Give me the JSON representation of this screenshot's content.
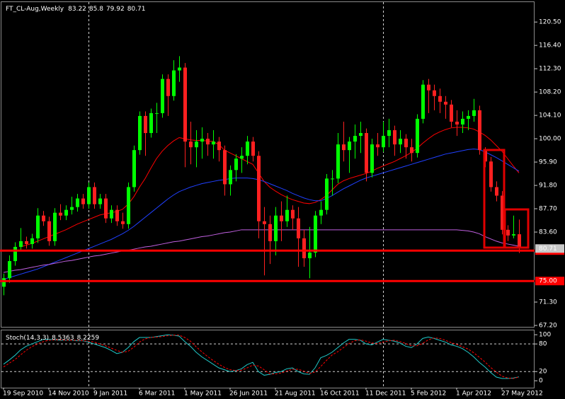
{
  "chart_data": [
    {
      "type": "candlestick",
      "title": "FT_CL-Aug,Weekly",
      "categories": [
        "19 Sep 2010",
        null,
        null,
        null,
        null,
        null,
        null,
        null,
        "14 Nov 2010",
        null,
        null,
        null,
        null,
        null,
        null,
        null,
        "9 Jan 2011",
        null,
        null,
        null,
        null,
        null,
        null,
        null,
        "6 Mar 2011",
        null,
        null,
        null,
        null,
        null,
        null,
        null,
        "1 May 2011",
        null,
        null,
        null,
        null,
        null,
        null,
        null,
        "26 Jun 2011",
        null,
        null,
        null,
        null,
        null,
        null,
        null,
        "21 Aug 2011",
        null,
        null,
        null,
        null,
        null,
        null,
        null,
        "16 Oct 2011",
        null,
        null,
        null,
        null,
        null,
        null,
        null,
        "11 Dec 2011",
        null,
        null,
        null,
        null,
        null,
        null,
        null,
        "5 Feb 2012",
        null,
        null,
        null,
        null,
        null,
        null,
        null,
        "1 Apr 2012",
        null,
        null,
        null,
        null,
        null,
        null,
        null,
        "27 May 2012",
        null,
        null,
        null
      ],
      "ohlc": [
        [
          74.0,
          76.3,
          72.5,
          75.5
        ],
        [
          75.5,
          79.5,
          74.7,
          78.5
        ],
        [
          78.5,
          81.8,
          77.7,
          81.0
        ],
        [
          81.0,
          84.3,
          80.2,
          82.0
        ],
        [
          82.0,
          82.8,
          80.7,
          81.5
        ],
        [
          81.5,
          83.3,
          80.7,
          82.5
        ],
        [
          82.5,
          87.8,
          81.7,
          86.5
        ],
        [
          86.5,
          87.3,
          84.7,
          85.5
        ],
        [
          85.5,
          86.3,
          81.2,
          82.0
        ],
        [
          82.0,
          87.8,
          81.2,
          87.0
        ],
        [
          87.0,
          88.5,
          85.7,
          86.5
        ],
        [
          86.5,
          88.3,
          85.7,
          87.5
        ],
        [
          87.5,
          89.8,
          86.7,
          88.0
        ],
        [
          88.0,
          90.3,
          87.2,
          89.5
        ],
        [
          89.5,
          90.3,
          87.7,
          88.5
        ],
        [
          88.5,
          92.3,
          87.7,
          91.5
        ],
        [
          91.5,
          92.3,
          87.7,
          88.5
        ],
        [
          88.5,
          90.3,
          87.7,
          89.5
        ],
        [
          89.5,
          90.3,
          85.2,
          86.0
        ],
        [
          86.0,
          88.3,
          85.2,
          87.5
        ],
        [
          87.5,
          88.3,
          84.7,
          85.5
        ],
        [
          85.5,
          87.0,
          84.2,
          85.0
        ],
        [
          85.0,
          92.3,
          84.2,
          91.5
        ],
        [
          91.5,
          98.8,
          90.7,
          98.0
        ],
        [
          98.0,
          104.8,
          97.2,
          104.0
        ],
        [
          104.0,
          104.8,
          97.0,
          101.0
        ],
        [
          101.0,
          105.3,
          100.2,
          104.5
        ],
        [
          104.5,
          106.3,
          101.0,
          104.5
        ],
        [
          104.5,
          111.3,
          103.7,
          110.5
        ],
        [
          110.5,
          111.3,
          104.0,
          107.5
        ],
        [
          107.5,
          113.8,
          106.7,
          112.0
        ],
        [
          112.0,
          114.5,
          110.0,
          112.5
        ],
        [
          112.5,
          113.3,
          95.0,
          99.5
        ],
        [
          99.5,
          103.0,
          95.5,
          98.5
        ],
        [
          98.5,
          101.5,
          95.0,
          99.5
        ],
        [
          99.5,
          102.0,
          96.5,
          100.0
        ],
        [
          100.0,
          101.0,
          97.0,
          99.0
        ],
        [
          99.0,
          101.5,
          96.5,
          99.5
        ],
        [
          99.5,
          100.3,
          96.0,
          98.0
        ],
        [
          98.0,
          98.8,
          90.0,
          92.0
        ],
        [
          92.0,
          95.3,
          90.0,
          94.5
        ],
        [
          94.5,
          97.3,
          92.5,
          96.5
        ],
        [
          96.5,
          98.5,
          94.0,
          97.0
        ],
        [
          97.0,
          100.5,
          95.5,
          99.5
        ],
        [
          99.5,
          100.3,
          96.0,
          97.0
        ],
        [
          97.0,
          97.8,
          82.5,
          85.5
        ],
        [
          85.5,
          88.0,
          76.0,
          85.0
        ],
        [
          85.0,
          86.5,
          78.0,
          82.0
        ],
        [
          82.0,
          88.0,
          79.5,
          86.5
        ],
        [
          86.5,
          89.0,
          82.0,
          85.5
        ],
        [
          85.5,
          90.0,
          84.5,
          87.5
        ],
        [
          87.5,
          88.3,
          84.0,
          86.0
        ],
        [
          86.0,
          88.0,
          77.5,
          82.5
        ],
        [
          82.5,
          84.0,
          77.5,
          79.0
        ],
        [
          79.0,
          84.5,
          75.5,
          80.0
        ],
        [
          80.0,
          87.3,
          79.2,
          86.5
        ],
        [
          86.5,
          89.0,
          85.0,
          87.5
        ],
        [
          87.5,
          93.8,
          86.7,
          93.0
        ],
        [
          93.0,
          94.5,
          90.0,
          93.0
        ],
        [
          93.0,
          101.0,
          92.2,
          99.0
        ],
        [
          99.0,
          103.0,
          96.0,
          98.0
        ],
        [
          98.0,
          100.3,
          94.0,
          99.5
        ],
        [
          99.5,
          102.5,
          96.5,
          100.5
        ],
        [
          100.5,
          103.0,
          97.5,
          101.0
        ],
        [
          101.0,
          101.8,
          92.5,
          94.0
        ],
        [
          94.0,
          100.0,
          93.2,
          99.0
        ],
        [
          99.0,
          101.0,
          97.0,
          98.5
        ],
        [
          98.5,
          103.0,
          97.7,
          100.5
        ],
        [
          100.5,
          103.5,
          98.5,
          101.5
        ],
        [
          101.5,
          102.3,
          97.0,
          99.0
        ],
        [
          99.0,
          101.5,
          97.5,
          100.0
        ],
        [
          100.0,
          100.8,
          96.5,
          98.5
        ],
        [
          98.5,
          100.0,
          96.0,
          97.5
        ],
        [
          97.5,
          104.3,
          96.7,
          103.5
        ],
        [
          103.5,
          110.3,
          102.7,
          109.5
        ],
        [
          109.5,
          110.5,
          104.5,
          108.5
        ],
        [
          108.5,
          109.5,
          105.0,
          107.5
        ],
        [
          107.5,
          108.8,
          104.5,
          106.5
        ],
        [
          106.5,
          107.5,
          103.5,
          106.0
        ],
        [
          106.0,
          106.8,
          102.0,
          103.0
        ],
        [
          103.0,
          105.0,
          100.5,
          102.5
        ],
        [
          102.5,
          104.8,
          101.0,
          103.5
        ],
        [
          103.5,
          105.0,
          101.5,
          104.0
        ],
        [
          104.0,
          107.0,
          103.0,
          105.0
        ],
        [
          105.0,
          105.8,
          97.2,
          98.0
        ],
        [
          98.0,
          98.5,
          95.0,
          96.0
        ],
        [
          96.0,
          96.8,
          90.7,
          91.5
        ],
        [
          91.5,
          92.5,
          89.0,
          90.0
        ],
        [
          90.0,
          90.8,
          83.2,
          84.0
        ],
        [
          84.0,
          84.8,
          82.0,
          83.0
        ],
        [
          83.0,
          86.5,
          82.5,
          83.22
        ],
        [
          83.22,
          85.8,
          79.92,
          80.71
        ]
      ],
      "up_color": "#00ff00",
      "down_color": "#ff2020",
      "overlays": [
        {
          "color": "#ff0000",
          "values": [
            null,
            null,
            null,
            81.0,
            81.3,
            81.6,
            82.0,
            82.4,
            82.8,
            83.2,
            83.6,
            84.0,
            84.5,
            85.0,
            85.4,
            85.8,
            86.2,
            86.6,
            86.8,
            87.0,
            87.2,
            87.6,
            88.5,
            89.8,
            91.5,
            93.0,
            94.8,
            96.5,
            97.8,
            98.8,
            99.6,
            100.2,
            100.0,
            99.8,
            99.7,
            99.7,
            99.6,
            99.5,
            99.0,
            98.0,
            97.5,
            97.0,
            96.5,
            96.0,
            95.5,
            94.0,
            92.5,
            91.5,
            90.8,
            90.2,
            89.7,
            89.3,
            89.0,
            88.7,
            88.6,
            88.8,
            89.3,
            90.0,
            91.0,
            92.0,
            92.6,
            93.0,
            93.3,
            93.6,
            93.9,
            94.3,
            94.8,
            95.2,
            95.6,
            96.0,
            96.5,
            97.0,
            97.6,
            98.3,
            99.2,
            100.0,
            100.7,
            101.2,
            101.6,
            101.9,
            102.0,
            102.0,
            101.9,
            101.7,
            101.2,
            100.6,
            99.8,
            98.8,
            97.8,
            96.5,
            95.2,
            94.0
          ]
        },
        {
          "color": "#2040ff",
          "values": [
            75.3,
            75.6,
            75.9,
            76.2,
            76.5,
            76.8,
            77.1,
            77.5,
            77.9,
            78.3,
            78.7,
            79.1,
            79.5,
            79.9,
            80.3,
            80.7,
            81.1,
            81.5,
            81.9,
            82.3,
            82.8,
            83.3,
            83.9,
            84.6,
            85.4,
            86.2,
            87.0,
            87.8,
            88.6,
            89.4,
            90.1,
            90.7,
            91.1,
            91.5,
            91.8,
            92.1,
            92.3,
            92.5,
            92.7,
            92.8,
            93.0,
            93.1,
            93.1,
            93.1,
            93.0,
            92.8,
            92.5,
            92.1,
            91.7,
            91.3,
            90.9,
            90.4,
            90.0,
            89.6,
            89.3,
            89.1,
            89.1,
            89.5,
            90.0,
            90.6,
            91.2,
            91.7,
            92.2,
            92.7,
            93.1,
            93.4,
            93.7,
            94.0,
            94.3,
            94.6,
            94.9,
            95.2,
            95.5,
            95.8,
            96.1,
            96.4,
            96.7,
            97.0,
            97.3,
            97.5,
            97.7,
            97.9,
            98.1,
            98.2,
            98.1,
            97.7,
            97.2,
            96.7,
            96.1,
            95.5,
            94.9,
            94.3
          ]
        },
        {
          "color": "#c060e0",
          "values": [
            76.5,
            76.7,
            76.9,
            77.0,
            77.2,
            77.4,
            77.6,
            77.8,
            77.9,
            78.1,
            78.3,
            78.5,
            78.6,
            78.8,
            79.0,
            79.2,
            79.4,
            79.5,
            79.7,
            79.9,
            80.1,
            80.3,
            80.4,
            80.6,
            80.8,
            81.0,
            81.1,
            81.3,
            81.5,
            81.7,
            81.9,
            82.0,
            82.2,
            82.4,
            82.6,
            82.8,
            82.9,
            83.1,
            83.3,
            83.5,
            83.6,
            83.8,
            84.0,
            84.0,
            84.0,
            84.0,
            84.0,
            84.0,
            84.0,
            84.0,
            84.0,
            84.0,
            84.0,
            84.0,
            84.0,
            84.0,
            84.0,
            84.0,
            84.0,
            84.0,
            84.0,
            84.0,
            84.0,
            84.0,
            84.0,
            84.0,
            84.0,
            84.0,
            84.0,
            84.0,
            84.0,
            84.0,
            84.0,
            84.0,
            84.0,
            84.0,
            84.0,
            84.0,
            84.0,
            84.0,
            84.0,
            83.9,
            83.8,
            83.6,
            83.3,
            82.8,
            82.4,
            82.0,
            81.7,
            81.5,
            81.3,
            81.1
          ]
        }
      ],
      "ylim": [
        66.95,
        124.0
      ],
      "yticks": [
        {
          "value": 120.5,
          "label": "120.50"
        },
        {
          "value": 116.4,
          "label": "116.40"
        },
        {
          "value": 112.3,
          "label": "112.30"
        },
        {
          "value": 108.2,
          "label": "108.20"
        },
        {
          "value": 104.1,
          "label": "104.10"
        },
        {
          "value": 100,
          "label": "100.00"
        },
        {
          "value": 95.9,
          "label": "95.90"
        },
        {
          "value": 91.8,
          "label": "91.80"
        },
        {
          "value": 87.7,
          "label": "87.70"
        },
        {
          "value": 83.6,
          "label": "83.60"
        },
        {
          "value": 71.3,
          "label": "71.30"
        },
        {
          "value": 67.2,
          "label": "67.20"
        }
      ],
      "levels": [
        80.35,
        {
          "value": 75,
          "label": "75.00"
        }
      ],
      "level_color": "#ff0000"
    },
    {
      "type": "line",
      "title": "Stoch(14,3,3)",
      "series": [
        {
          "color": "#20c8c8",
          "values": [
            36,
            45,
            55,
            67,
            75,
            80,
            85,
            90,
            90,
            89,
            88,
            88,
            88,
            87,
            87,
            84,
            80,
            76,
            72,
            66,
            59,
            62,
            72,
            85,
            94,
            94,
            94,
            96,
            98,
            100,
            99,
            97,
            85,
            75,
            62,
            52,
            44,
            36,
            28,
            24,
            20,
            22,
            26,
            35,
            40,
            20,
            12,
            14,
            18,
            20,
            26,
            28,
            20,
            15,
            14,
            28,
            50,
            55,
            62,
            72,
            82,
            90,
            90,
            88,
            80,
            78,
            84,
            90,
            88,
            86,
            82,
            75,
            72,
            80,
            92,
            95,
            92,
            88,
            84,
            78,
            75,
            70,
            62,
            52,
            40,
            30,
            18,
            8,
            5,
            5,
            6,
            8.5363
          ]
        },
        {
          "color": "#ff0000",
          "dash": true,
          "values": [
            30,
            38,
            46,
            56,
            66,
            74,
            80,
            85,
            88,
            89,
            89,
            88,
            88,
            88,
            87,
            86,
            84,
            80,
            76,
            71,
            66,
            62,
            64,
            73,
            84,
            91,
            94,
            95,
            96,
            98,
            99,
            99,
            94,
            86,
            74,
            63,
            53,
            44,
            36,
            29,
            24,
            22,
            23,
            28,
            34,
            32,
            24,
            15,
            15,
            17,
            21,
            25,
            25,
            21,
            16,
            19,
            31,
            44,
            56,
            63,
            72,
            81,
            87,
            89,
            86,
            82,
            81,
            84,
            87,
            88,
            85,
            81,
            76,
            76,
            81,
            89,
            93,
            92,
            88,
            83,
            79,
            74,
            69,
            61,
            51,
            41,
            29,
            19,
            10,
            6,
            5,
            8.2259
          ]
        }
      ],
      "ylim": [
        -15,
        111
      ],
      "yticks": [
        100,
        80,
        20,
        0
      ],
      "levels": [
        80,
        20
      ]
    }
  ]
}
